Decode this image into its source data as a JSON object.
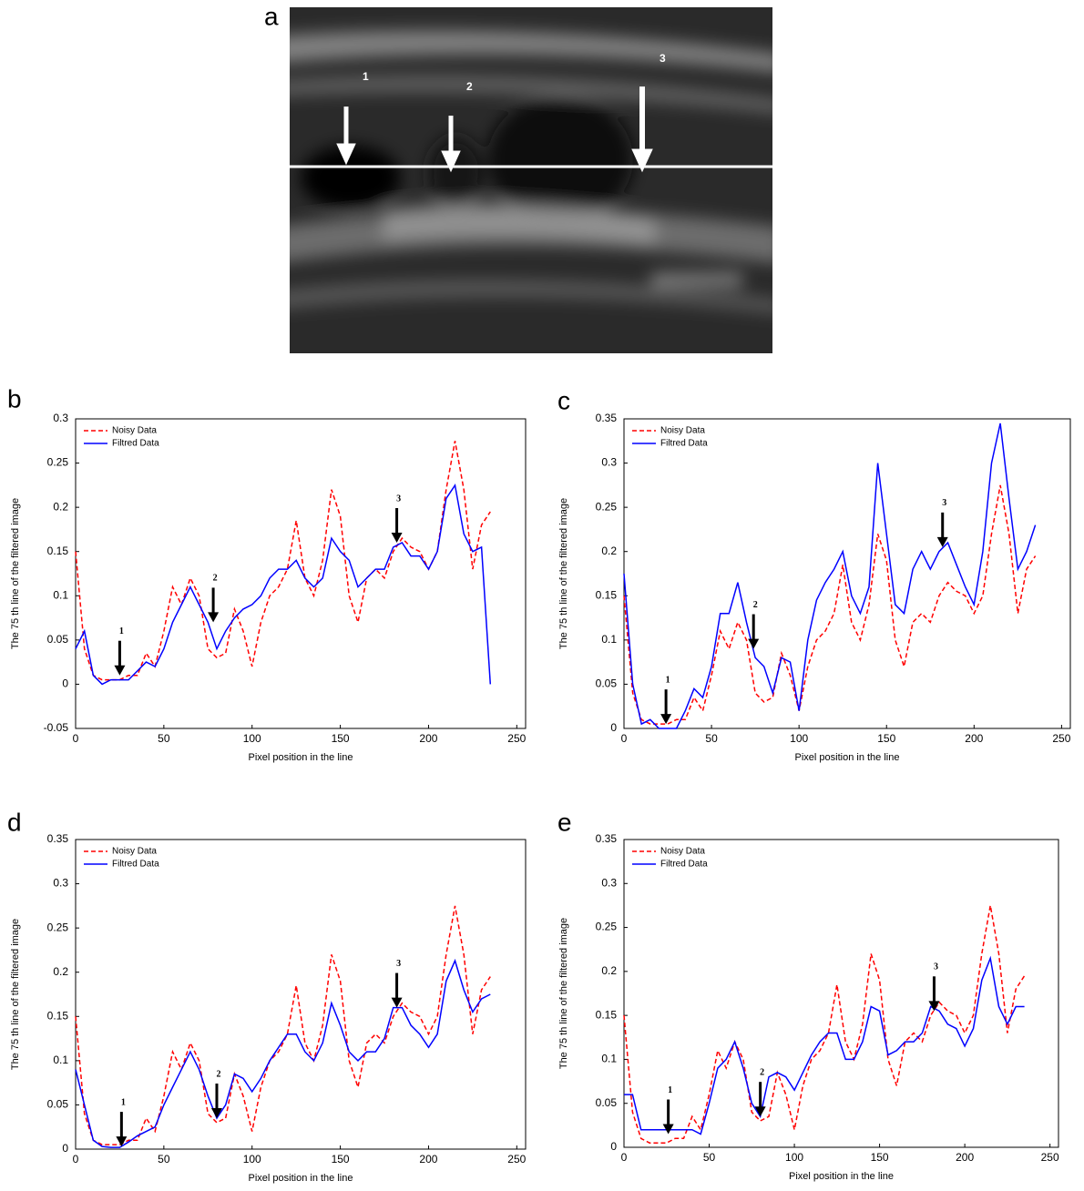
{
  "figure": {
    "panel_label": "a",
    "markers": [
      "1",
      "2",
      "3"
    ]
  },
  "chart_data": [
    {
      "type": "line",
      "panel_label": "b",
      "xlabel": "Pixel position in the line",
      "ylabel": "The 75 th line of the filtered image",
      "x": [
        0,
        5,
        10,
        15,
        20,
        25,
        30,
        35,
        40,
        45,
        50,
        55,
        60,
        65,
        70,
        75,
        80,
        85,
        90,
        95,
        100,
        105,
        110,
        115,
        120,
        125,
        130,
        135,
        140,
        145,
        150,
        155,
        160,
        165,
        170,
        175,
        180,
        185,
        190,
        195,
        200,
        205,
        210,
        215,
        220,
        225,
        230,
        235
      ],
      "series": [
        {
          "name": "Noisy Data",
          "color": "#ff0000",
          "linestyle": "dashed",
          "values": [
            0.15,
            0.04,
            0.01,
            0.005,
            0.005,
            0.005,
            0.01,
            0.01,
            0.035,
            0.02,
            0.06,
            0.11,
            0.09,
            0.12,
            0.1,
            0.04,
            0.03,
            0.035,
            0.085,
            0.06,
            0.02,
            0.07,
            0.1,
            0.11,
            0.13,
            0.185,
            0.12,
            0.1,
            0.14,
            0.22,
            0.19,
            0.1,
            0.07,
            0.12,
            0.13,
            0.12,
            0.15,
            0.165,
            0.155,
            0.15,
            0.13,
            0.15,
            0.22,
            0.275,
            0.22,
            0.13,
            0.18,
            0.195
          ]
        },
        {
          "name": "Filtred Data",
          "color": "#0000ff",
          "linestyle": "solid",
          "values": [
            0.04,
            0.06,
            0.01,
            0,
            0.005,
            0.005,
            0.005,
            0.015,
            0.025,
            0.02,
            0.04,
            0.07,
            0.09,
            0.11,
            0.09,
            0.07,
            0.04,
            0.06,
            0.075,
            0.085,
            0.09,
            0.1,
            0.12,
            0.13,
            0.13,
            0.14,
            0.12,
            0.11,
            0.12,
            0.165,
            0.15,
            0.14,
            0.11,
            0.12,
            0.13,
            0.13,
            0.155,
            0.16,
            0.145,
            0.145,
            0.13,
            0.15,
            0.21,
            0.225,
            0.17,
            0.15,
            0.155,
            0
          ]
        }
      ],
      "xlim": [
        0,
        255
      ],
      "xticks": [
        0,
        50,
        100,
        150,
        200,
        250
      ],
      "ylim": [
        -0.05,
        0.3
      ],
      "yticks": [
        -0.05,
        0,
        0.05,
        0.1,
        0.15,
        0.2,
        0.25,
        0.3
      ],
      "legend": "upper left",
      "annotations": [
        {
          "text": "1",
          "x": 25,
          "y": 0.01
        },
        {
          "text": "2",
          "x": 78,
          "y": 0.07
        },
        {
          "text": "3",
          "x": 182,
          "y": 0.16
        }
      ]
    },
    {
      "type": "line",
      "panel_label": "c",
      "xlabel": "Pixel position in the line",
      "ylabel": "The 75 th line of the filtered image",
      "x": [
        0,
        5,
        10,
        15,
        20,
        25,
        30,
        35,
        40,
        45,
        50,
        55,
        60,
        65,
        70,
        75,
        80,
        85,
        90,
        95,
        100,
        105,
        110,
        115,
        120,
        125,
        130,
        135,
        140,
        145,
        150,
        155,
        160,
        165,
        170,
        175,
        180,
        185,
        190,
        195,
        200,
        205,
        210,
        215,
        220,
        225,
        230,
        235
      ],
      "series": [
        {
          "name": "Noisy Data",
          "color": "#ff0000",
          "linestyle": "dashed",
          "values": [
            0.15,
            0.04,
            0.01,
            0.005,
            0.005,
            0.005,
            0.01,
            0.01,
            0.035,
            0.02,
            0.06,
            0.11,
            0.09,
            0.12,
            0.1,
            0.04,
            0.03,
            0.035,
            0.085,
            0.06,
            0.02,
            0.07,
            0.1,
            0.11,
            0.13,
            0.185,
            0.12,
            0.1,
            0.14,
            0.22,
            0.19,
            0.1,
            0.07,
            0.12,
            0.13,
            0.12,
            0.15,
            0.165,
            0.155,
            0.15,
            0.13,
            0.15,
            0.22,
            0.275,
            0.22,
            0.13,
            0.18,
            0.195
          ]
        },
        {
          "name": "Filtred Data",
          "color": "#0000ff",
          "linestyle": "solid",
          "values": [
            0.175,
            0.05,
            0.005,
            0.01,
            0,
            0,
            0,
            0.02,
            0.045,
            0.035,
            0.07,
            0.13,
            0.13,
            0.165,
            0.12,
            0.08,
            0.07,
            0.04,
            0.08,
            0.075,
            0.02,
            0.1,
            0.145,
            0.165,
            0.18,
            0.2,
            0.15,
            0.13,
            0.16,
            0.3,
            0.22,
            0.14,
            0.13,
            0.18,
            0.2,
            0.18,
            0.2,
            0.21,
            0.185,
            0.16,
            0.14,
            0.2,
            0.3,
            0.345,
            0.26,
            0.18,
            0.2,
            0.23
          ]
        }
      ],
      "xlim": [
        0,
        255
      ],
      "xticks": [
        0,
        50,
        100,
        150,
        200,
        250
      ],
      "ylim": [
        0,
        0.35
      ],
      "yticks": [
        0,
        0.05,
        0.1,
        0.15,
        0.2,
        0.25,
        0.3,
        0.35
      ],
      "legend": "upper left",
      "annotations": [
        {
          "text": "1",
          "x": 24,
          "y": 0.005
        },
        {
          "text": "2",
          "x": 74,
          "y": 0.09
        },
        {
          "text": "3",
          "x": 182,
          "y": 0.205
        }
      ]
    },
    {
      "type": "line",
      "panel_label": "d",
      "xlabel": "Pixel position in the line",
      "ylabel": "The 75 th line of the filtered image",
      "x": [
        0,
        5,
        10,
        15,
        20,
        25,
        30,
        35,
        40,
        45,
        50,
        55,
        60,
        65,
        70,
        75,
        80,
        85,
        90,
        95,
        100,
        105,
        110,
        115,
        120,
        125,
        130,
        135,
        140,
        145,
        150,
        155,
        160,
        165,
        170,
        175,
        180,
        185,
        190,
        195,
        200,
        205,
        210,
        215,
        220,
        225,
        230,
        235
      ],
      "series": [
        {
          "name": "Noisy Data",
          "color": "#ff0000",
          "linestyle": "dashed",
          "values": [
            0.15,
            0.04,
            0.01,
            0.005,
            0.005,
            0.005,
            0.01,
            0.01,
            0.035,
            0.02,
            0.06,
            0.11,
            0.09,
            0.12,
            0.1,
            0.04,
            0.03,
            0.035,
            0.085,
            0.06,
            0.02,
            0.07,
            0.1,
            0.11,
            0.13,
            0.185,
            0.12,
            0.1,
            0.14,
            0.22,
            0.19,
            0.1,
            0.07,
            0.12,
            0.13,
            0.12,
            0.15,
            0.165,
            0.155,
            0.15,
            0.13,
            0.15,
            0.22,
            0.275,
            0.22,
            0.13,
            0.18,
            0.195
          ]
        },
        {
          "name": "Filtred Data",
          "color": "#0000ff",
          "linestyle": "solid",
          "values": [
            0.09,
            0.05,
            0.01,
            0.003,
            0.002,
            0.002,
            0.008,
            0.015,
            0.02,
            0.025,
            0.05,
            0.07,
            0.09,
            0.11,
            0.09,
            0.06,
            0.035,
            0.05,
            0.085,
            0.08,
            0.065,
            0.08,
            0.1,
            0.115,
            0.13,
            0.13,
            0.11,
            0.1,
            0.12,
            0.165,
            0.14,
            0.11,
            0.1,
            0.11,
            0.11,
            0.125,
            0.16,
            0.16,
            0.14,
            0.13,
            0.115,
            0.13,
            0.19,
            0.213,
            0.18,
            0.155,
            0.17,
            0.175
          ]
        }
      ],
      "xlim": [
        0,
        255
      ],
      "xticks": [
        0,
        50,
        100,
        150,
        200,
        250
      ],
      "ylim": [
        0,
        0.35
      ],
      "yticks": [
        0,
        0.05,
        0.1,
        0.15,
        0.2,
        0.25,
        0.3,
        0.35
      ],
      "legend": "upper left",
      "annotations": [
        {
          "text": "1",
          "x": 26,
          "y": 0.003
        },
        {
          "text": "2",
          "x": 80,
          "y": 0.035
        },
        {
          "text": "3",
          "x": 182,
          "y": 0.16
        }
      ]
    },
    {
      "type": "line",
      "panel_label": "e",
      "xlabel": "Pixel position in the line",
      "ylabel": "The 75 th line of the filtered image",
      "x": [
        0,
        5,
        10,
        15,
        20,
        25,
        30,
        35,
        40,
        45,
        50,
        55,
        60,
        65,
        70,
        75,
        80,
        85,
        90,
        95,
        100,
        105,
        110,
        115,
        120,
        125,
        130,
        135,
        140,
        145,
        150,
        155,
        160,
        165,
        170,
        175,
        180,
        185,
        190,
        195,
        200,
        205,
        210,
        215,
        220,
        225,
        230,
        235
      ],
      "series": [
        {
          "name": "Noisy Data",
          "color": "#ff0000",
          "linestyle": "dashed",
          "values": [
            0.15,
            0.04,
            0.01,
            0.005,
            0.005,
            0.005,
            0.01,
            0.01,
            0.035,
            0.02,
            0.06,
            0.11,
            0.09,
            0.12,
            0.1,
            0.04,
            0.03,
            0.035,
            0.085,
            0.06,
            0.02,
            0.07,
            0.1,
            0.11,
            0.13,
            0.185,
            0.12,
            0.1,
            0.14,
            0.22,
            0.19,
            0.1,
            0.07,
            0.12,
            0.13,
            0.12,
            0.15,
            0.165,
            0.155,
            0.15,
            0.13,
            0.15,
            0.22,
            0.275,
            0.22,
            0.13,
            0.18,
            0.195
          ]
        },
        {
          "name": "Filtred Data",
          "color": "#0000ff",
          "linestyle": "solid",
          "values": [
            0.06,
            0.06,
            0.02,
            0.02,
            0.02,
            0.02,
            0.02,
            0.02,
            0.02,
            0.015,
            0.05,
            0.09,
            0.1,
            0.12,
            0.09,
            0.05,
            0.035,
            0.08,
            0.085,
            0.08,
            0.065,
            0.085,
            0.105,
            0.12,
            0.13,
            0.13,
            0.1,
            0.1,
            0.12,
            0.16,
            0.155,
            0.105,
            0.11,
            0.12,
            0.12,
            0.13,
            0.16,
            0.155,
            0.14,
            0.135,
            0.115,
            0.135,
            0.19,
            0.215,
            0.16,
            0.14,
            0.16,
            0.16
          ]
        }
      ],
      "xlim": [
        0,
        255
      ],
      "xticks": [
        0,
        50,
        100,
        150,
        200,
        250
      ],
      "ylim": [
        0,
        0.35
      ],
      "yticks": [
        0,
        0.05,
        0.1,
        0.15,
        0.2,
        0.25,
        0.3,
        0.35
      ],
      "legend": "upper left",
      "annotations": [
        {
          "text": "1",
          "x": 26,
          "y": 0.015
        },
        {
          "text": "2",
          "x": 80,
          "y": 0.035
        },
        {
          "text": "3",
          "x": 182,
          "y": 0.155
        }
      ]
    }
  ]
}
